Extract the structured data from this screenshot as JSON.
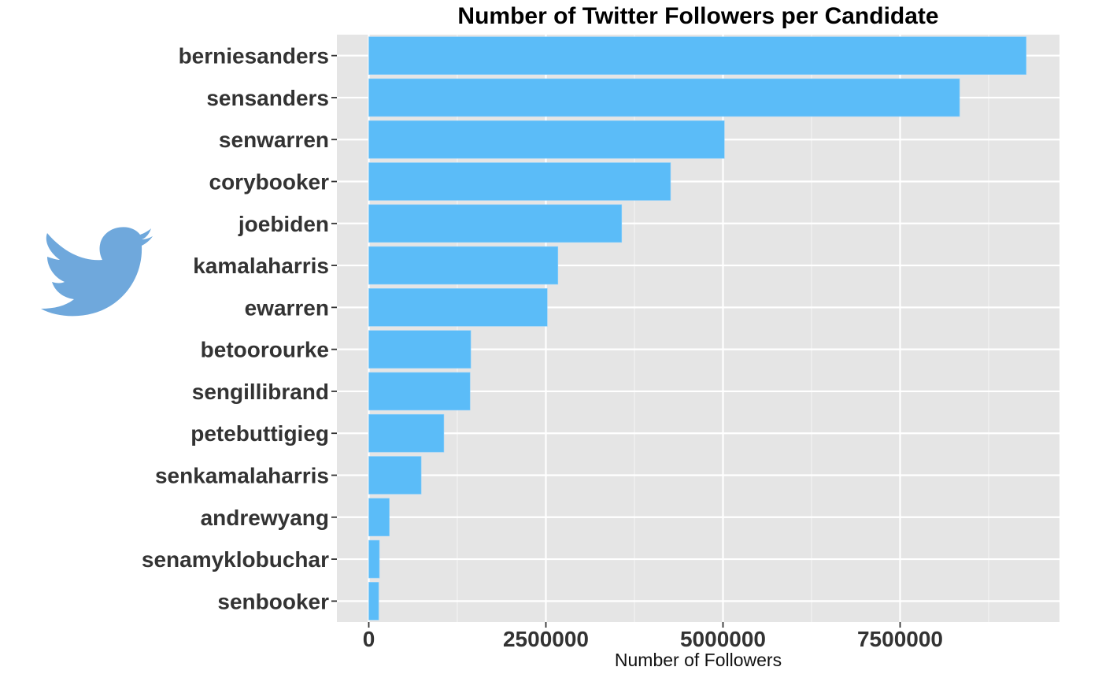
{
  "chart_data": {
    "type": "bar",
    "orientation": "horizontal",
    "title": "Number of Twitter Followers per Candidate",
    "xlabel": "Number of Followers",
    "ylabel": "",
    "categories": [
      "berniesanders",
      "sensanders",
      "senwarren",
      "corybooker",
      "joebiden",
      "kamalaharris",
      "ewarren",
      "betoorourke",
      "sengillibrand",
      "petebuttigieg",
      "senkamalaharris",
      "andrewyang",
      "senamyklobuchar",
      "senbooker"
    ],
    "values": [
      9280000,
      8340000,
      5020000,
      4260000,
      3570000,
      2670000,
      2520000,
      1440000,
      1430000,
      1060000,
      740000,
      290000,
      150000,
      140000
    ],
    "xticks": [
      0,
      2500000,
      5000000,
      7500000
    ],
    "xtick_labels": [
      "0",
      "2500000",
      "5000000",
      "7500000"
    ],
    "xlim": [
      -450000,
      9750000
    ],
    "grid": true,
    "bar_color": "#5bbcf8",
    "panel_color": "#e5e5e5"
  },
  "decorations": {
    "logo_icon": "twitter-bird-icon",
    "logo_color": "#6fa8dc"
  }
}
